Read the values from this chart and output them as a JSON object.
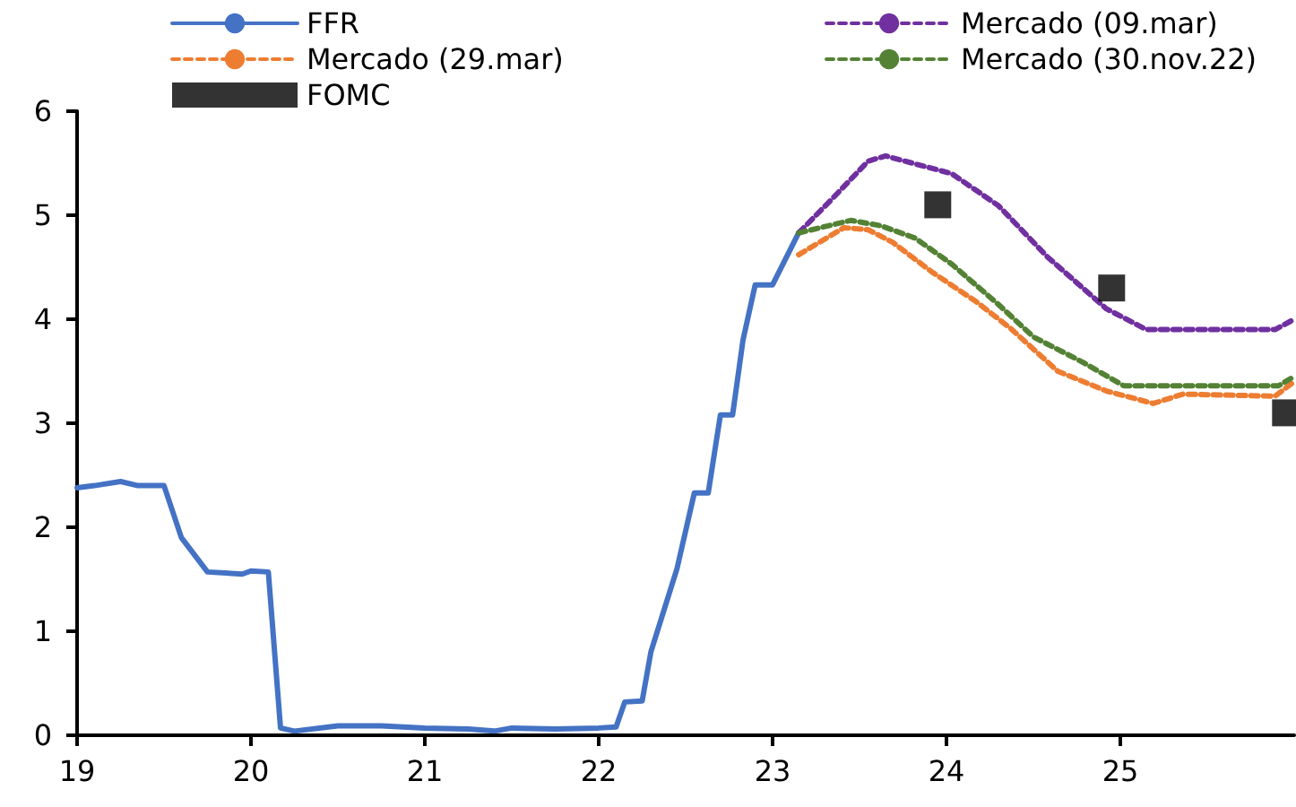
{
  "chart_data": {
    "type": "line",
    "xlim": [
      19,
      26
    ],
    "xticks": [
      19,
      20,
      21,
      22,
      23,
      24,
      25
    ],
    "ylim": [
      0,
      6
    ],
    "yticks": [
      0,
      1,
      2,
      3,
      4,
      5,
      6
    ],
    "grid": false,
    "legend": "top",
    "marker": "none",
    "series": [
      {
        "name": "FFR",
        "color": "#4472c4",
        "line_style": "solid",
        "x": [
          19.0,
          19.1,
          19.25,
          19.35,
          19.5,
          19.6,
          19.75,
          19.95,
          20.0,
          20.1,
          20.17,
          20.25,
          20.5,
          20.75,
          21.0,
          21.25,
          21.4,
          21.5,
          21.75,
          22.0,
          22.1,
          22.15,
          22.25,
          22.3,
          22.45,
          22.55,
          22.63,
          22.7,
          22.77,
          22.83,
          22.9,
          23.0,
          23.15
        ],
        "values": [
          2.38,
          2.4,
          2.44,
          2.4,
          2.4,
          1.9,
          1.57,
          1.55,
          1.58,
          1.57,
          0.07,
          0.04,
          0.09,
          0.09,
          0.07,
          0.06,
          0.04,
          0.07,
          0.06,
          0.07,
          0.08,
          0.32,
          0.33,
          0.8,
          1.6,
          2.33,
          2.33,
          3.08,
          3.08,
          3.8,
          4.33,
          4.33,
          4.83
        ]
      },
      {
        "name": "Mercado (09.mar)",
        "color": "#7030a0",
        "line_style": "dashed",
        "x": [
          23.15,
          23.35,
          23.55,
          23.65,
          23.76,
          24.03,
          24.3,
          24.58,
          24.92,
          25.15,
          25.89,
          26.0
        ],
        "values": [
          4.83,
          5.17,
          5.52,
          5.57,
          5.52,
          5.4,
          5.09,
          4.6,
          4.1,
          3.9,
          3.9,
          4.0
        ]
      },
      {
        "name": "Mercado (29.mar)",
        "color": "#ed7d31",
        "line_style": "dashed",
        "x": [
          23.15,
          23.41,
          23.55,
          23.69,
          23.92,
          24.17,
          24.37,
          24.64,
          24.92,
          25.19,
          25.36,
          25.89,
          26.0
        ],
        "values": [
          4.62,
          4.88,
          4.86,
          4.74,
          4.45,
          4.17,
          3.91,
          3.5,
          3.31,
          3.19,
          3.28,
          3.26,
          3.4
        ]
      },
      {
        "name": "Mercado (30.nov.22)",
        "color": "#548235",
        "line_style": "dashed",
        "x": [
          23.15,
          23.45,
          23.62,
          23.82,
          24.03,
          24.3,
          24.5,
          24.78,
          25.02,
          25.91,
          26.0
        ],
        "values": [
          4.83,
          4.95,
          4.9,
          4.78,
          4.53,
          4.14,
          3.83,
          3.59,
          3.36,
          3.36,
          3.45
        ]
      },
      {
        "name": "FOMC",
        "type": "scatter",
        "marker": "square",
        "color": "#000000",
        "x": [
          23.95,
          24.95,
          25.95
        ],
        "values": [
          5.1,
          4.3,
          3.1
        ]
      }
    ]
  }
}
